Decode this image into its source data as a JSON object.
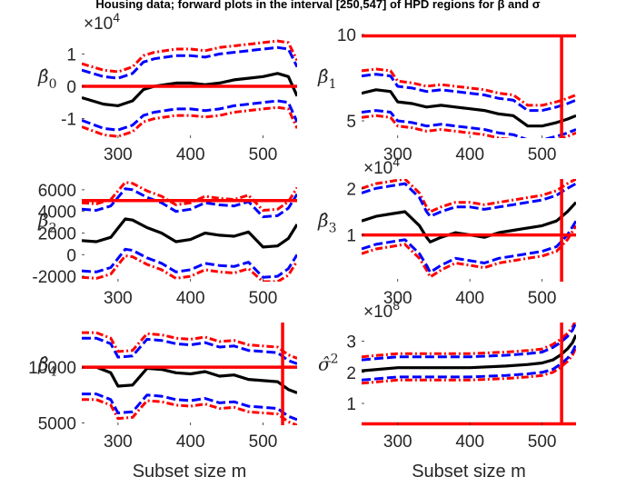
{
  "title": "Housing data; forward plots in the interval [250,547]  of HPD regions for β and σ",
  "colors": {
    "central": "#000000",
    "inner": "#0000ff",
    "outer": "#ff0000",
    "reference": "#ff0000"
  },
  "chart_data": [
    {
      "id": "beta0",
      "type": "line",
      "ylabel": "β̂0",
      "exponent_label": "×10",
      "exponent": "4",
      "xlim": [
        250,
        547
      ],
      "ylim": [
        -1.6,
        1.6
      ],
      "xticks": [
        "300",
        "400",
        "500"
      ],
      "yticks": [
        "-1",
        "0",
        "1"
      ],
      "ytick_values": [
        -1,
        0,
        1
      ],
      "hlines": [
        0
      ],
      "vlines": [],
      "x": [
        250,
        280,
        300,
        320,
        335,
        350,
        380,
        400,
        420,
        440,
        460,
        480,
        500,
        520,
        535,
        547
      ],
      "series": [
        {
          "role": "central",
          "values": [
            -0.35,
            -0.55,
            -0.6,
            -0.45,
            -0.1,
            0.0,
            0.1,
            0.1,
            0.05,
            0.1,
            0.2,
            0.25,
            0.3,
            0.4,
            0.3,
            -0.3
          ]
        },
        {
          "role": "inner_upper",
          "values": [
            0.5,
            0.3,
            0.25,
            0.4,
            0.75,
            0.85,
            0.95,
            0.95,
            0.9,
            1.0,
            1.05,
            1.1,
            1.15,
            1.2,
            1.15,
            0.6
          ]
        },
        {
          "role": "inner_lower",
          "values": [
            -1.05,
            -1.3,
            -1.35,
            -1.2,
            -0.9,
            -0.8,
            -0.7,
            -0.7,
            -0.75,
            -0.7,
            -0.6,
            -0.55,
            -0.5,
            -0.45,
            -0.5,
            -1.1
          ]
        },
        {
          "role": "outer_upper",
          "values": [
            0.7,
            0.5,
            0.45,
            0.6,
            0.95,
            1.05,
            1.15,
            1.15,
            1.1,
            1.2,
            1.25,
            1.3,
            1.35,
            1.4,
            1.35,
            0.8
          ]
        },
        {
          "role": "outer_lower",
          "values": [
            -1.25,
            -1.5,
            -1.55,
            -1.4,
            -1.1,
            -1.0,
            -0.9,
            -0.9,
            -0.95,
            -0.9,
            -0.8,
            -0.75,
            -0.7,
            -0.65,
            -0.7,
            -1.3
          ]
        }
      ],
      "xlabel": ""
    },
    {
      "id": "beta1",
      "type": "line",
      "ylabel": "β̂1",
      "exponent_label": "",
      "exponent": "",
      "xlim": [
        250,
        547
      ],
      "ylim": [
        4,
        10
      ],
      "xticks": [
        "300",
        "400",
        "500"
      ],
      "yticks": [
        "5",
        "10"
      ],
      "ytick_values": [
        5,
        10
      ],
      "hlines": [
        10
      ],
      "vlines": [
        527
      ],
      "x": [
        250,
        270,
        290,
        300,
        320,
        340,
        360,
        380,
        400,
        420,
        440,
        460,
        480,
        500,
        520,
        535,
        547
      ],
      "series": [
        {
          "role": "central",
          "values": [
            6.6,
            6.8,
            6.7,
            6.1,
            6.0,
            5.8,
            5.9,
            5.8,
            5.7,
            5.6,
            5.4,
            5.3,
            4.7,
            4.7,
            4.9,
            5.1,
            5.3
          ]
        },
        {
          "role": "inner_upper",
          "values": [
            7.6,
            7.7,
            7.6,
            7.0,
            6.9,
            6.7,
            6.8,
            6.7,
            6.6,
            6.5,
            6.3,
            6.2,
            5.6,
            5.6,
            5.8,
            6.0,
            6.2
          ]
        },
        {
          "role": "inner_lower",
          "values": [
            5.5,
            5.6,
            5.5,
            5.0,
            4.9,
            4.7,
            4.8,
            4.7,
            4.6,
            4.5,
            4.3,
            4.2,
            3.9,
            3.9,
            4.1,
            4.3,
            4.5
          ]
        },
        {
          "role": "outer_upper",
          "values": [
            7.9,
            8.0,
            7.9,
            7.3,
            7.2,
            7.0,
            7.1,
            7.0,
            6.9,
            6.8,
            6.6,
            6.5,
            5.9,
            5.9,
            6.1,
            6.3,
            6.5
          ]
        },
        {
          "role": "outer_lower",
          "values": [
            5.2,
            5.3,
            5.2,
            4.7,
            4.6,
            4.4,
            4.5,
            4.4,
            4.3,
            4.2,
            4.0,
            3.9,
            3.7,
            3.7,
            3.9,
            4.1,
            4.3
          ]
        }
      ],
      "xlabel": ""
    },
    {
      "id": "beta2",
      "type": "line",
      "ylabel": "β̂2",
      "exponent_label": "",
      "exponent": "",
      "xlim": [
        250,
        547
      ],
      "ylim": [
        -2500,
        7000
      ],
      "xticks": [
        "300",
        "400",
        "500"
      ],
      "yticks": [
        "-2000",
        "0",
        "2000",
        "4000",
        "6000"
      ],
      "ytick_values": [
        -2000,
        0,
        2000,
        4000,
        6000
      ],
      "hlines": [
        5000
      ],
      "vlines": [],
      "x": [
        250,
        270,
        290,
        310,
        320,
        340,
        360,
        380,
        400,
        420,
        440,
        460,
        480,
        500,
        520,
        535,
        547
      ],
      "series": [
        {
          "role": "central",
          "values": [
            1300,
            1200,
            1600,
            3300,
            3200,
            2500,
            2000,
            1200,
            1400,
            2000,
            1800,
            1700,
            2100,
            700,
            800,
            1500,
            2800
          ]
        },
        {
          "role": "inner_upper",
          "values": [
            4200,
            4100,
            4500,
            6100,
            6000,
            5300,
            4800,
            4000,
            4200,
            4800,
            4600,
            4500,
            4900,
            3500,
            3600,
            4300,
            5600
          ]
        },
        {
          "role": "inner_lower",
          "values": [
            -1500,
            -1600,
            -1200,
            500,
            400,
            -300,
            -800,
            -1600,
            -1400,
            -800,
            -1000,
            -1100,
            -700,
            -2100,
            -2000,
            -1300,
            0
          ]
        },
        {
          "role": "outer_upper",
          "values": [
            4800,
            4700,
            5100,
            6700,
            6600,
            5900,
            5400,
            4600,
            4800,
            5400,
            5200,
            5100,
            5500,
            4100,
            4200,
            4900,
            6200
          ]
        },
        {
          "role": "outer_lower",
          "values": [
            -2100,
            -2200,
            -1800,
            -100,
            -200,
            -900,
            -1400,
            -2200,
            -2000,
            -1400,
            -1600,
            -1700,
            -1300,
            -2500,
            -2500,
            -1900,
            -600
          ]
        }
      ],
      "xlabel": ""
    },
    {
      "id": "beta3",
      "type": "line",
      "ylabel": "β̂3",
      "exponent_label": "×10",
      "exponent": "4",
      "xlim": [
        250,
        547
      ],
      "ylim": [
        0,
        2.2
      ],
      "xticks": [
        "300",
        "400",
        "500"
      ],
      "yticks": [
        "1",
        "2"
      ],
      "ytick_values": [
        1,
        2
      ],
      "hlines": [
        1
      ],
      "vlines": [
        527
      ],
      "x": [
        250,
        270,
        290,
        310,
        330,
        340,
        345,
        360,
        380,
        400,
        420,
        440,
        460,
        480,
        500,
        520,
        535,
        547
      ],
      "series": [
        {
          "role": "central",
          "values": [
            1.3,
            1.4,
            1.45,
            1.5,
            1.2,
            0.95,
            0.85,
            0.95,
            1.05,
            1.0,
            0.95,
            1.05,
            1.1,
            1.15,
            1.2,
            1.3,
            1.5,
            1.7
          ]
        },
        {
          "role": "inner_upper",
          "values": [
            1.9,
            2.0,
            2.05,
            2.1,
            1.8,
            1.5,
            1.4,
            1.5,
            1.6,
            1.6,
            1.55,
            1.6,
            1.65,
            1.7,
            1.75,
            1.85,
            2.0,
            2.1
          ]
        },
        {
          "role": "inner_lower",
          "values": [
            0.7,
            0.8,
            0.85,
            0.9,
            0.6,
            0.35,
            0.2,
            0.35,
            0.5,
            0.45,
            0.4,
            0.5,
            0.55,
            0.6,
            0.65,
            0.75,
            1.0,
            1.3
          ]
        },
        {
          "role": "outer_upper",
          "values": [
            2.0,
            2.1,
            2.15,
            2.2,
            1.9,
            1.6,
            1.5,
            1.6,
            1.7,
            1.7,
            1.65,
            1.7,
            1.75,
            1.8,
            1.85,
            1.95,
            2.1,
            2.2
          ]
        },
        {
          "role": "outer_lower",
          "values": [
            0.6,
            0.7,
            0.75,
            0.8,
            0.5,
            0.25,
            0.1,
            0.25,
            0.4,
            0.35,
            0.3,
            0.4,
            0.45,
            0.5,
            0.55,
            0.65,
            0.9,
            1.2
          ]
        }
      ],
      "xlabel": ""
    },
    {
      "id": "beta4",
      "type": "line",
      "ylabel": "β̂4",
      "exponent_label": "",
      "exponent": "",
      "xlim": [
        250,
        547
      ],
      "ylim": [
        4800,
        14000
      ],
      "xticks": [
        "300",
        "400",
        "500"
      ],
      "yticks": [
        "5000",
        "10000"
      ],
      "ytick_values": [
        5000,
        10000
      ],
      "hlines": [
        10000
      ],
      "vlines": [
        527
      ],
      "x": [
        250,
        270,
        290,
        300,
        320,
        340,
        360,
        380,
        400,
        420,
        440,
        460,
        480,
        500,
        520,
        535,
        547
      ],
      "series": [
        {
          "role": "central",
          "values": [
            10000,
            10000,
            9500,
            8300,
            8400,
            9900,
            9800,
            9500,
            9400,
            9600,
            9200,
            9300,
            8900,
            8800,
            8700,
            8000,
            7700
          ]
        },
        {
          "role": "inner_upper",
          "values": [
            12600,
            12600,
            12100,
            10900,
            11000,
            12500,
            12400,
            12100,
            12000,
            12200,
            11800,
            11900,
            11500,
            11400,
            11300,
            10600,
            10300
          ]
        },
        {
          "role": "inner_lower",
          "values": [
            7600,
            7600,
            7100,
            5900,
            6000,
            7500,
            7400,
            7100,
            7000,
            7200,
            6800,
            6900,
            6500,
            6400,
            6300,
            5600,
            5300
          ]
        },
        {
          "role": "outer_upper",
          "values": [
            13100,
            13100,
            12600,
            11400,
            11500,
            13000,
            12900,
            12600,
            12500,
            12700,
            12300,
            12400,
            12000,
            11900,
            11800,
            11100,
            10800
          ]
        },
        {
          "role": "outer_lower",
          "values": [
            7100,
            7100,
            6600,
            5400,
            5500,
            7000,
            6900,
            6600,
            6500,
            6700,
            6300,
            6400,
            6000,
            5900,
            5800,
            5100,
            4800
          ]
        }
      ],
      "xlabel": "Subset size m"
    },
    {
      "id": "sigma2",
      "type": "line",
      "ylabel": "σ̂2",
      "exponent_label": "×10",
      "exponent": "8",
      "xlim": [
        250,
        547
      ],
      "ylim": [
        0.3,
        3.6
      ],
      "xticks": [
        "300",
        "400",
        "500"
      ],
      "yticks": [
        "1",
        "2",
        "3"
      ],
      "ytick_values": [
        1,
        2,
        3
      ],
      "hlines": [
        0.3
      ],
      "vlines": [
        527
      ],
      "x": [
        250,
        300,
        350,
        400,
        450,
        480,
        500,
        515,
        525,
        535,
        542,
        547
      ],
      "series": [
        {
          "role": "central",
          "values": [
            2.05,
            2.15,
            2.15,
            2.15,
            2.2,
            2.25,
            2.3,
            2.4,
            2.55,
            2.75,
            2.95,
            3.2
          ]
        },
        {
          "role": "inner_upper",
          "values": [
            2.4,
            2.5,
            2.5,
            2.5,
            2.55,
            2.6,
            2.65,
            2.8,
            2.95,
            3.15,
            3.35,
            3.6
          ]
        },
        {
          "role": "inner_lower",
          "values": [
            1.75,
            1.85,
            1.85,
            1.85,
            1.9,
            1.95,
            2.0,
            2.1,
            2.25,
            2.45,
            2.65,
            2.9
          ]
        },
        {
          "role": "outer_upper",
          "values": [
            2.5,
            2.6,
            2.6,
            2.6,
            2.65,
            2.7,
            2.75,
            2.9,
            3.05,
            3.25,
            3.45,
            3.7
          ]
        },
        {
          "role": "outer_lower",
          "values": [
            1.65,
            1.75,
            1.75,
            1.75,
            1.8,
            1.85,
            1.9,
            2.0,
            2.15,
            2.35,
            2.55,
            2.8
          ]
        }
      ],
      "xlabel": "Subset size m"
    }
  ]
}
